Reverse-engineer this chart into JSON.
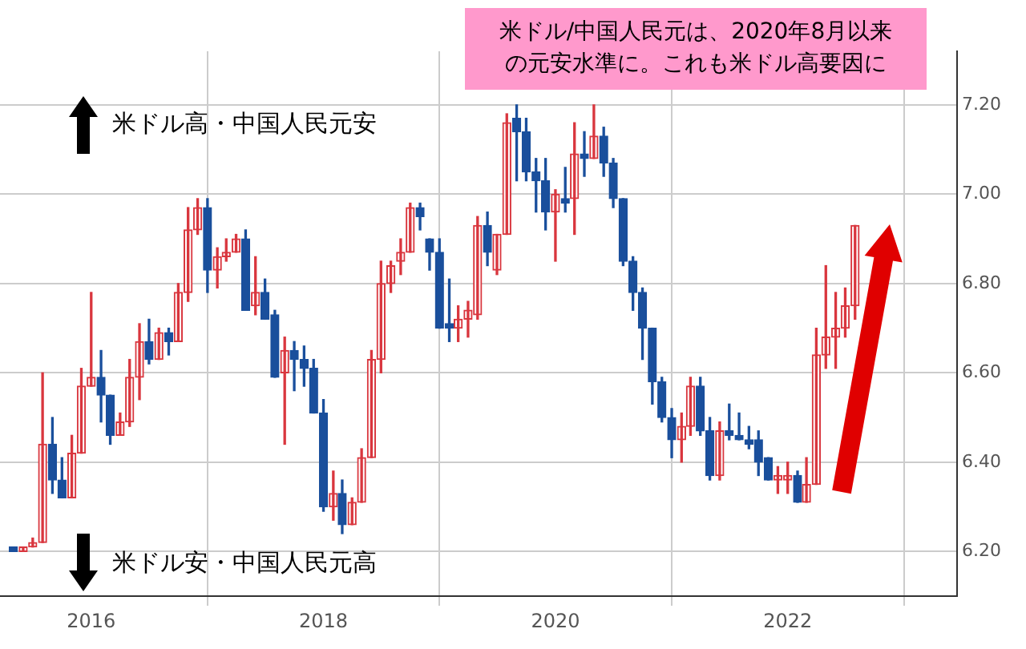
{
  "chart_data": {
    "type": "candlestick",
    "annotations": [
      "米ドル/中国人民元は、2020年8月以来の元安水準に。これも米ドル高要因に",
      "米ドル高・中国人民元安",
      "米ドル安・中国人民元高"
    ],
    "x": [
      "2015-05",
      "2015-06",
      "2015-07",
      "2015-08",
      "2015-09",
      "2015-10",
      "2015-11",
      "2015-12",
      "2016-01",
      "2016-02",
      "2016-03",
      "2016-04",
      "2016-05",
      "2016-06",
      "2016-07",
      "2016-08",
      "2016-09",
      "2016-10",
      "2016-11",
      "2016-12",
      "2017-01",
      "2017-02",
      "2017-03",
      "2017-04",
      "2017-05",
      "2017-06",
      "2017-07",
      "2017-08",
      "2017-09",
      "2017-10",
      "2017-11",
      "2017-12",
      "2018-01",
      "2018-02",
      "2018-03",
      "2018-04",
      "2018-05",
      "2018-06",
      "2018-07",
      "2018-08",
      "2018-09",
      "2018-10",
      "2018-11",
      "2018-12",
      "2019-01",
      "2019-02",
      "2019-03",
      "2019-04",
      "2019-05",
      "2019-06",
      "2019-07",
      "2019-08",
      "2019-09",
      "2019-10",
      "2019-11",
      "2019-12",
      "2020-01",
      "2020-02",
      "2020-03",
      "2020-04",
      "2020-05",
      "2020-06",
      "2020-07",
      "2020-08",
      "2020-09",
      "2020-10",
      "2020-11",
      "2020-12",
      "2021-01",
      "2021-02",
      "2021-03",
      "2021-04",
      "2021-05",
      "2021-06",
      "2021-07",
      "2021-08",
      "2021-09",
      "2021-10",
      "2021-11",
      "2021-12",
      "2022-01",
      "2022-02",
      "2022-03",
      "2022-04",
      "2022-05",
      "2022-06",
      "2022-07",
      "2022-08"
    ],
    "ohlc": [
      [
        6.21,
        6.21,
        6.2,
        6.2
      ],
      [
        6.2,
        6.21,
        6.2,
        6.21
      ],
      [
        6.21,
        6.23,
        6.21,
        6.22
      ],
      [
        6.22,
        6.6,
        6.22,
        6.44
      ],
      [
        6.44,
        6.5,
        6.33,
        6.36
      ],
      [
        6.36,
        6.41,
        6.32,
        6.32
      ],
      [
        6.32,
        6.46,
        6.32,
        6.42
      ],
      [
        6.42,
        6.61,
        6.42,
        6.57
      ],
      [
        6.57,
        6.78,
        6.57,
        6.59
      ],
      [
        6.59,
        6.65,
        6.49,
        6.55
      ],
      [
        6.55,
        6.55,
        6.44,
        6.46
      ],
      [
        6.46,
        6.51,
        6.46,
        6.49
      ],
      [
        6.49,
        6.63,
        6.48,
        6.59
      ],
      [
        6.59,
        6.71,
        6.54,
        6.67
      ],
      [
        6.67,
        6.72,
        6.62,
        6.63
      ],
      [
        6.63,
        6.7,
        6.63,
        6.69
      ],
      [
        6.69,
        6.7,
        6.64,
        6.67
      ],
      [
        6.67,
        6.8,
        6.67,
        6.78
      ],
      [
        6.78,
        6.97,
        6.76,
        6.92
      ],
      [
        6.92,
        6.99,
        6.91,
        6.97
      ],
      [
        6.97,
        6.99,
        6.78,
        6.83
      ],
      [
        6.83,
        6.88,
        6.79,
        6.86
      ],
      [
        6.86,
        6.9,
        6.85,
        6.87
      ],
      [
        6.87,
        6.91,
        6.87,
        6.9
      ],
      [
        6.9,
        6.92,
        6.74,
        6.74
      ],
      [
        6.75,
        6.86,
        6.73,
        6.78
      ],
      [
        6.78,
        6.81,
        6.72,
        6.72
      ],
      [
        6.73,
        6.74,
        6.59,
        6.59
      ],
      [
        6.6,
        6.68,
        6.44,
        6.65
      ],
      [
        6.65,
        6.67,
        6.56,
        6.63
      ],
      [
        6.63,
        6.66,
        6.57,
        6.61
      ],
      [
        6.61,
        6.63,
        6.51,
        6.51
      ],
      [
        6.51,
        6.54,
        6.29,
        6.3
      ],
      [
        6.3,
        6.38,
        6.27,
        6.33
      ],
      [
        6.33,
        6.36,
        6.24,
        6.26
      ],
      [
        6.26,
        6.32,
        6.26,
        6.31
      ],
      [
        6.31,
        6.43,
        6.31,
        6.41
      ],
      [
        6.41,
        6.65,
        6.41,
        6.63
      ],
      [
        6.63,
        6.85,
        6.6,
        6.8
      ],
      [
        6.8,
        6.85,
        6.78,
        6.84
      ],
      [
        6.85,
        6.9,
        6.82,
        6.87
      ],
      [
        6.87,
        6.98,
        6.87,
        6.97
      ],
      [
        6.97,
        6.98,
        6.92,
        6.95
      ],
      [
        6.9,
        6.9,
        6.83,
        6.87
      ],
      [
        6.87,
        6.9,
        6.7,
        6.7
      ],
      [
        6.71,
        6.81,
        6.67,
        6.7
      ],
      [
        6.7,
        6.75,
        6.67,
        6.72
      ],
      [
        6.72,
        6.76,
        6.68,
        6.74
      ],
      [
        6.73,
        6.95,
        6.72,
        6.93
      ],
      [
        6.93,
        6.96,
        6.84,
        6.87
      ],
      [
        6.83,
        6.91,
        6.82,
        6.91
      ],
      [
        6.91,
        7.18,
        6.91,
        7.16
      ],
      [
        7.17,
        7.2,
        7.03,
        7.14
      ],
      [
        7.14,
        7.17,
        7.03,
        7.05
      ],
      [
        7.05,
        7.08,
        6.96,
        7.03
      ],
      [
        7.03,
        7.08,
        6.92,
        6.96
      ],
      [
        6.96,
        7.01,
        6.85,
        7.0
      ],
      [
        6.99,
        7.06,
        6.96,
        6.98
      ],
      [
        6.99,
        7.16,
        6.91,
        7.09
      ],
      [
        7.09,
        7.14,
        7.04,
        7.08
      ],
      [
        7.08,
        7.2,
        7.08,
        7.13
      ],
      [
        7.13,
        7.15,
        7.04,
        7.07
      ],
      [
        7.07,
        7.08,
        6.97,
        6.99
      ],
      [
        6.99,
        6.99,
        6.84,
        6.85
      ],
      [
        6.85,
        6.86,
        6.74,
        6.78
      ],
      [
        6.78,
        6.79,
        6.63,
        6.7
      ],
      [
        6.7,
        6.7,
        6.53,
        6.58
      ],
      [
        6.58,
        6.59,
        6.49,
        6.5
      ],
      [
        6.5,
        6.52,
        6.41,
        6.45
      ],
      [
        6.45,
        6.51,
        6.4,
        6.48
      ],
      [
        6.48,
        6.59,
        6.46,
        6.57
      ],
      [
        6.57,
        6.59,
        6.46,
        6.47
      ],
      [
        6.47,
        6.5,
        6.36,
        6.37
      ],
      [
        6.37,
        6.49,
        6.36,
        6.47
      ],
      [
        6.47,
        6.53,
        6.45,
        6.46
      ],
      [
        6.46,
        6.51,
        6.45,
        6.45
      ],
      [
        6.45,
        6.48,
        6.43,
        6.44
      ],
      [
        6.45,
        6.47,
        6.37,
        6.4
      ],
      [
        6.41,
        6.41,
        6.36,
        6.36
      ],
      [
        6.36,
        6.39,
        6.33,
        6.37
      ],
      [
        6.36,
        6.4,
        6.33,
        6.37
      ],
      [
        6.37,
        6.38,
        6.31,
        6.31
      ],
      [
        6.31,
        6.41,
        6.31,
        6.35
      ],
      [
        6.35,
        6.7,
        6.35,
        6.64
      ],
      [
        6.64,
        6.84,
        6.61,
        6.68
      ],
      [
        6.68,
        6.78,
        6.61,
        6.7
      ],
      [
        6.7,
        6.79,
        6.68,
        6.75
      ],
      [
        6.75,
        6.93,
        6.72,
        6.93
      ]
    ],
    "colors": [
      "#1a4f9c",
      "#d9363e",
      "#d9363e",
      "#d9363e",
      "#1a4f9c",
      "#1a4f9c",
      "#d9363e",
      "#d9363e",
      "#d9363e",
      "#1a4f9c",
      "#1a4f9c",
      "#d9363e",
      "#d9363e",
      "#d9363e",
      "#1a4f9c",
      "#d9363e",
      "#1a4f9c",
      "#d9363e",
      "#d9363e",
      "#d9363e",
      "#1a4f9c",
      "#d9363e",
      "#d9363e",
      "#d9363e",
      "#1a4f9c",
      "#d9363e",
      "#1a4f9c",
      "#1a4f9c",
      "#d9363e",
      "#1a4f9c",
      "#1a4f9c",
      "#1a4f9c",
      "#1a4f9c",
      "#d9363e",
      "#1a4f9c",
      "#d9363e",
      "#d9363e",
      "#d9363e",
      "#d9363e",
      "#d9363e",
      "#d9363e",
      "#d9363e",
      "#1a4f9c",
      "#1a4f9c",
      "#1a4f9c",
      "#1a4f9c",
      "#d9363e",
      "#d9363e",
      "#d9363e",
      "#1a4f9c",
      "#d9363e",
      "#d9363e",
      "#1a4f9c",
      "#1a4f9c",
      "#1a4f9c",
      "#1a4f9c",
      "#d9363e",
      "#1a4f9c",
      "#d9363e",
      "#1a4f9c",
      "#d9363e",
      "#1a4f9c",
      "#1a4f9c",
      "#1a4f9c",
      "#1a4f9c",
      "#1a4f9c",
      "#1a4f9c",
      "#1a4f9c",
      "#1a4f9c",
      "#d9363e",
      "#d9363e",
      "#1a4f9c",
      "#1a4f9c",
      "#d9363e",
      "#1a4f9c",
      "#1a4f9c",
      "#1a4f9c",
      "#1a4f9c",
      "#1a4f9c",
      "#d9363e",
      "#d9363e",
      "#1a4f9c",
      "#d9363e",
      "#d9363e",
      "#d9363e",
      "#d9363e",
      "#d9363e",
      "#d9363e"
    ],
    "xlim": [
      "2015-03-20",
      "2023-06-18"
    ],
    "xticks": [
      "2016",
      "2018",
      "2020",
      "2022"
    ],
    "ylim": [
      6.1,
      7.32
    ],
    "yticks": [
      {
        "value": 6.2,
        "label": "6.20"
      },
      {
        "value": 6.4,
        "label": "6.40"
      },
      {
        "value": 6.6,
        "label": "6.60"
      },
      {
        "value": 6.8,
        "label": "6.80"
      },
      {
        "value": 7.0,
        "label": "7.00"
      },
      {
        "value": 7.2,
        "label": "7.20"
      }
    ],
    "grid": true
  }
}
